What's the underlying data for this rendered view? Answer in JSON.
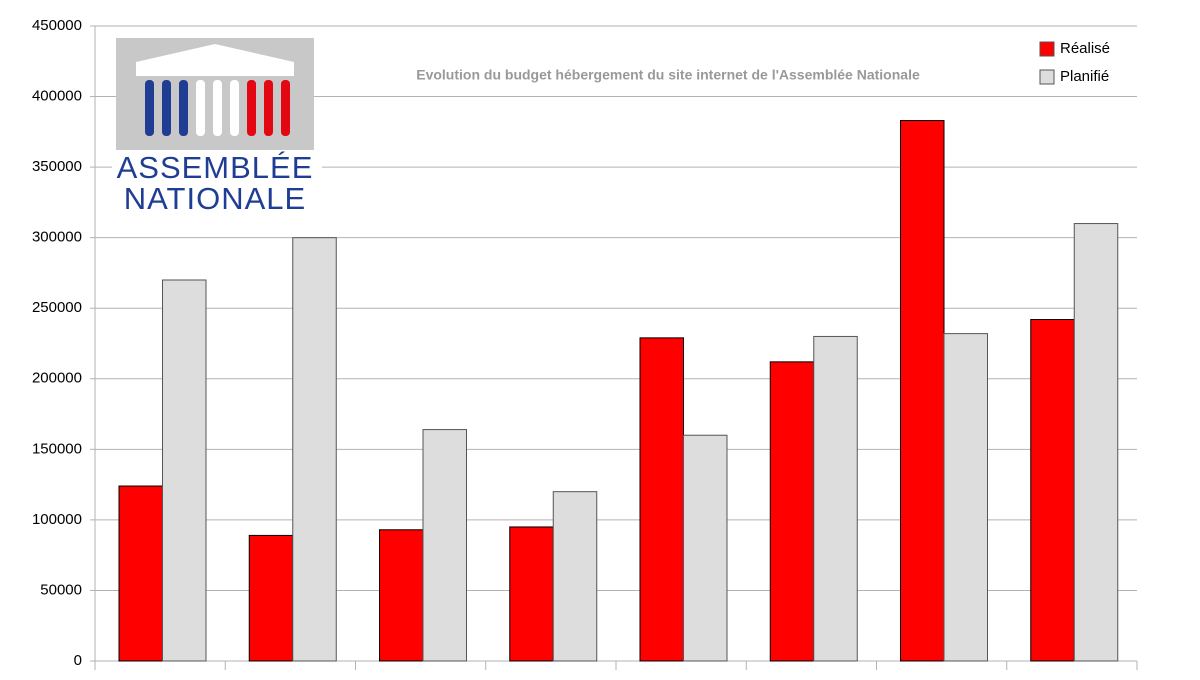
{
  "chart_data": {
    "type": "bar",
    "title": "Evolution du budget hébergement du site internet de l'Assemblée Nationale",
    "categories": [
      null,
      null,
      null,
      null,
      null,
      null,
      null,
      null
    ],
    "series": [
      {
        "name": "Réalisé",
        "color": "#ff0000",
        "values": [
          124000,
          89000,
          93000,
          95000,
          229000,
          212000,
          383000,
          242000
        ]
      },
      {
        "name": "Planifié",
        "color": "#dddddd",
        "values": [
          270000,
          300000,
          164000,
          120000,
          160000,
          230000,
          232000,
          310000
        ]
      }
    ],
    "ylim": [
      0,
      450000
    ],
    "yticks": [
      0,
      50000,
      100000,
      150000,
      200000,
      250000,
      300000,
      350000,
      400000,
      450000
    ],
    "grid": true,
    "legend": "top-right"
  },
  "logo": {
    "line1": "ASSEMBLÉE",
    "line2": "NATIONALE"
  }
}
